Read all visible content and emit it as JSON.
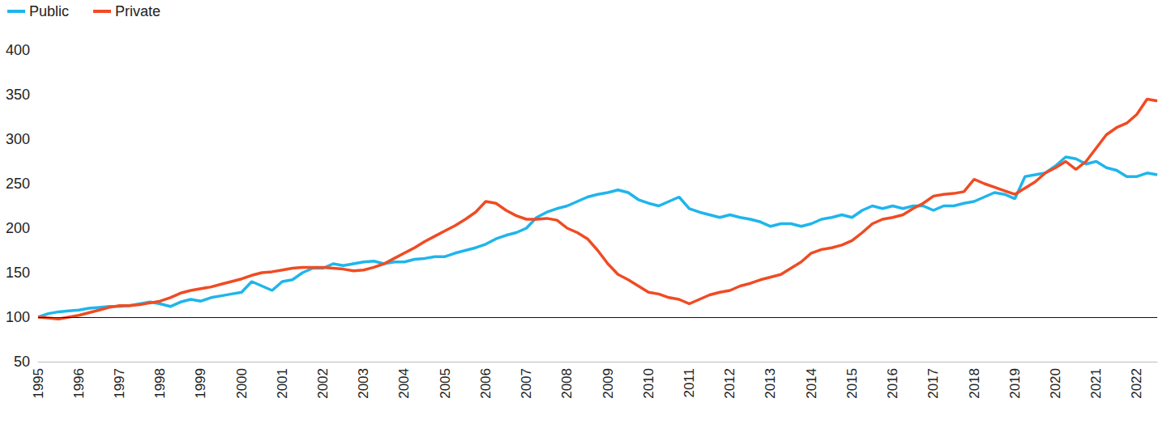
{
  "chart_data": {
    "type": "line",
    "x": [
      1995,
      1995.25,
      1995.5,
      1995.75,
      1996,
      1996.25,
      1996.5,
      1996.75,
      1997,
      1997.25,
      1997.5,
      1997.75,
      1998,
      1998.25,
      1998.5,
      1998.75,
      1999,
      1999.25,
      1999.5,
      1999.75,
      2000,
      2000.25,
      2000.5,
      2000.75,
      2001,
      2001.25,
      2001.5,
      2001.75,
      2002,
      2002.25,
      2002.5,
      2002.75,
      2003,
      2003.25,
      2003.5,
      2003.75,
      2004,
      2004.25,
      2004.5,
      2004.75,
      2005,
      2005.25,
      2005.5,
      2005.75,
      2006,
      2006.25,
      2006.5,
      2006.75,
      2007,
      2007.25,
      2007.5,
      2007.75,
      2008,
      2008.25,
      2008.5,
      2008.75,
      2009,
      2009.25,
      2009.5,
      2009.75,
      2010,
      2010.25,
      2010.5,
      2010.75,
      2011,
      2011.25,
      2011.5,
      2011.75,
      2012,
      2012.25,
      2012.5,
      2012.75,
      2013,
      2013.25,
      2013.5,
      2013.75,
      2014,
      2014.25,
      2014.5,
      2014.75,
      2015,
      2015.25,
      2015.5,
      2015.75,
      2016,
      2016.25,
      2016.5,
      2016.75,
      2017,
      2017.25,
      2017.5,
      2017.75,
      2018,
      2018.25,
      2018.5,
      2018.75,
      2019,
      2019.25,
      2019.5,
      2019.75,
      2020,
      2020.25,
      2020.5,
      2020.75,
      2021,
      2021.25,
      2021.5,
      2021.75,
      2022,
      2022.25,
      2022.5
    ],
    "series": [
      {
        "name": "Public",
        "color": "#1fb5ec",
        "values": [
          100,
          104,
          106,
          107,
          108,
          110,
          111,
          112,
          112,
          113,
          115,
          117,
          115,
          112,
          117,
          120,
          118,
          122,
          124,
          126,
          128,
          140,
          135,
          130,
          140,
          142,
          150,
          155,
          155,
          160,
          158,
          160,
          162,
          163,
          160,
          162,
          162,
          165,
          166,
          168,
          168,
          172,
          175,
          178,
          182,
          188,
          192,
          195,
          200,
          212,
          218,
          222,
          225,
          230,
          235,
          238,
          240,
          243,
          240,
          232,
          228,
          225,
          230,
          235,
          222,
          218,
          215,
          212,
          215,
          212,
          210,
          207,
          202,
          205,
          205,
          202,
          205,
          210,
          212,
          215,
          212,
          220,
          225,
          222,
          225,
          222,
          225,
          225,
          220,
          225,
          225,
          228,
          230,
          235,
          240,
          238,
          233,
          258,
          260,
          262,
          270,
          280,
          278,
          272,
          275,
          268,
          265,
          258,
          258,
          262,
          260
        ]
      },
      {
        "name": "Private",
        "color": "#f04b23",
        "values": [
          100,
          99,
          98,
          100,
          102,
          105,
          108,
          111,
          113,
          113,
          114,
          116,
          118,
          122,
          127,
          130,
          132,
          134,
          137,
          140,
          143,
          147,
          150,
          151,
          153,
          155,
          156,
          156,
          156,
          155,
          154,
          152,
          153,
          156,
          160,
          166,
          172,
          178,
          185,
          191,
          197,
          203,
          210,
          218,
          230,
          228,
          220,
          214,
          210,
          210,
          211,
          209,
          200,
          195,
          188,
          175,
          160,
          148,
          142,
          135,
          128,
          126,
          122,
          120,
          115,
          120,
          125,
          128,
          130,
          135,
          138,
          142,
          145,
          148,
          155,
          162,
          172,
          176,
          178,
          181,
          186,
          195,
          205,
          210,
          212,
          215,
          222,
          228,
          236,
          238,
          239,
          241,
          255,
          250,
          246,
          242,
          238,
          245,
          252,
          262,
          268,
          275,
          266,
          275,
          290,
          305,
          313,
          318,
          328,
          345,
          343
        ]
      }
    ],
    "xlim": [
      1995,
      2022.5
    ],
    "xticks": [
      1995,
      1996,
      1997,
      1998,
      1999,
      2000,
      2001,
      2002,
      2003,
      2004,
      2005,
      2006,
      2007,
      2008,
      2009,
      2010,
      2011,
      2012,
      2013,
      2014,
      2015,
      2016,
      2017,
      2018,
      2019,
      2020,
      2021,
      2022
    ],
    "ylim": [
      50,
      400
    ],
    "yticks": [
      50,
      100,
      150,
      200,
      250,
      300,
      350,
      400
    ],
    "grid": false,
    "legend": "top-left"
  }
}
